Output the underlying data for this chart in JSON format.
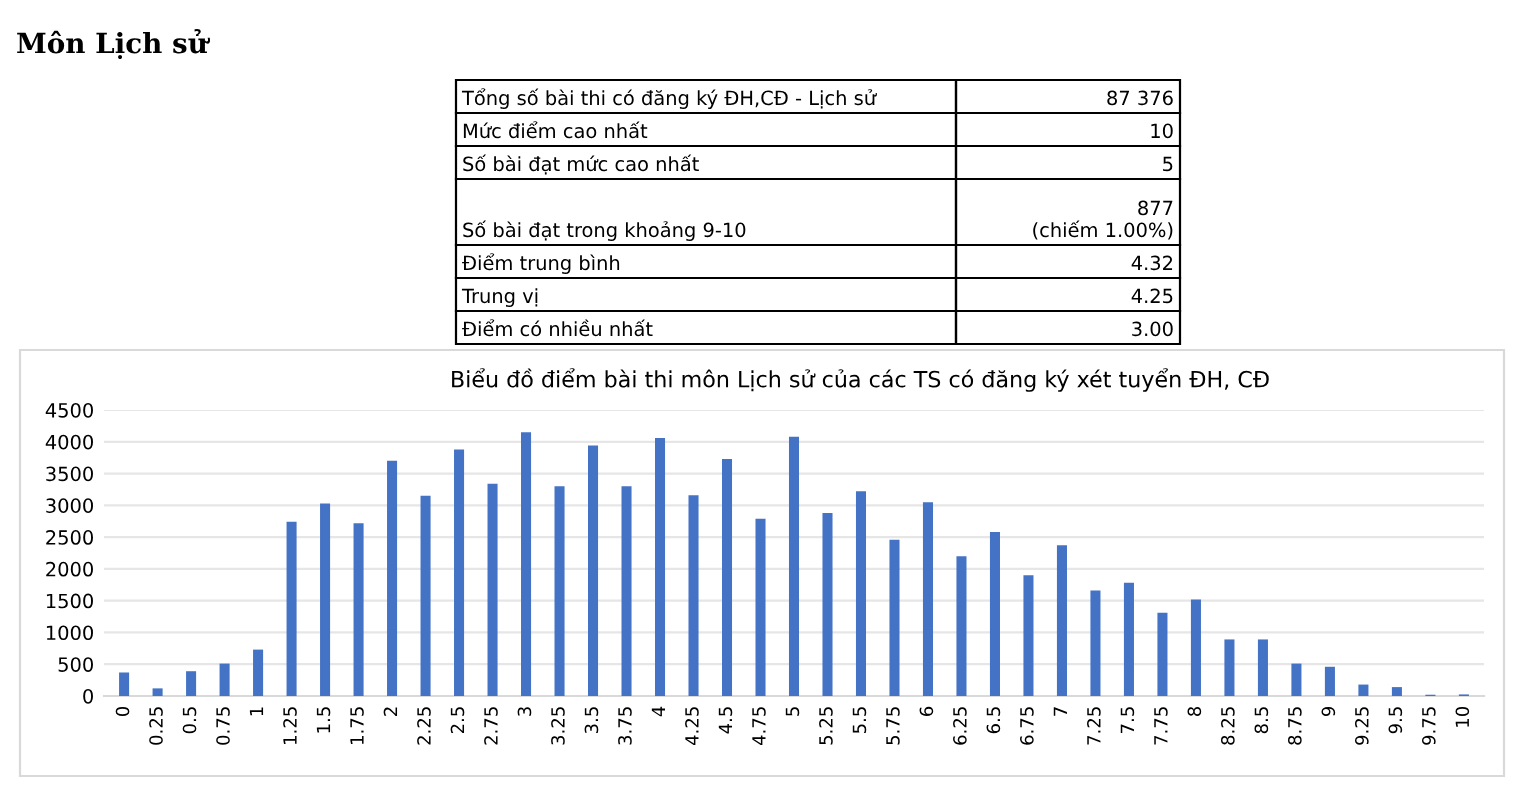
{
  "chart_data": [
    {
      "type": "other",
      "title": "Môn Lịch sử",
      "annotations": [
        "Tổng số bài thi có đăng ký ĐH,CĐ - Lịch sử",
        "87 376",
        "Mức điểm cao nhất",
        "10",
        "Số bài đạt mức cao nhất",
        "5",
        "Số bài đạt trong khoảng 9-10",
        "877\n(chiếm 1.00%)",
        "Điểm trung bình",
        "4.32",
        "Trung vị",
        "4.25",
        "Điểm có nhiều nhất",
        "3.00"
      ]
    },
    {
      "type": "bar",
      "title": "Biểu đồ điểm bài thi môn Lịch sử của các TS có đăng ký xét tuyển ĐH, CĐ",
      "categories": [
        "0",
        "0.25",
        "0.5",
        "0.75",
        "1",
        "1.25",
        "1.5",
        "1.75",
        "2",
        "2.25",
        "2.5",
        "2.75",
        "3",
        "3.25",
        "3.5",
        "3.75",
        "4",
        "4.25",
        "4.5",
        "4.75",
        "5",
        "5.25",
        "5.5",
        "5.75",
        "6",
        "6.25",
        "6.5",
        "6.75",
        "7",
        "7.25",
        "7.5",
        "7.75",
        "8",
        "8.25",
        "8.5",
        "8.75",
        "9",
        "9.25",
        "9.5",
        "9.75",
        "10"
      ],
      "values": [
        370,
        120,
        390,
        510,
        730,
        2740,
        3030,
        2720,
        3700,
        3150,
        3880,
        3340,
        4150,
        3300,
        3940,
        3300,
        4060,
        3160,
        3730,
        2790,
        4080,
        2880,
        3220,
        2460,
        3050,
        2200,
        2580,
        1900,
        2370,
        1660,
        1780,
        1310,
        1520,
        890,
        890,
        510,
        460,
        180,
        140,
        20,
        25
      ],
      "color": "#4472c4",
      "ylim": [
        0,
        4500
      ],
      "yticks": [
        0,
        500,
        1000,
        1500,
        2000,
        2500,
        3000,
        3500,
        4000,
        4500
      ],
      "grid": "y"
    }
  ]
}
